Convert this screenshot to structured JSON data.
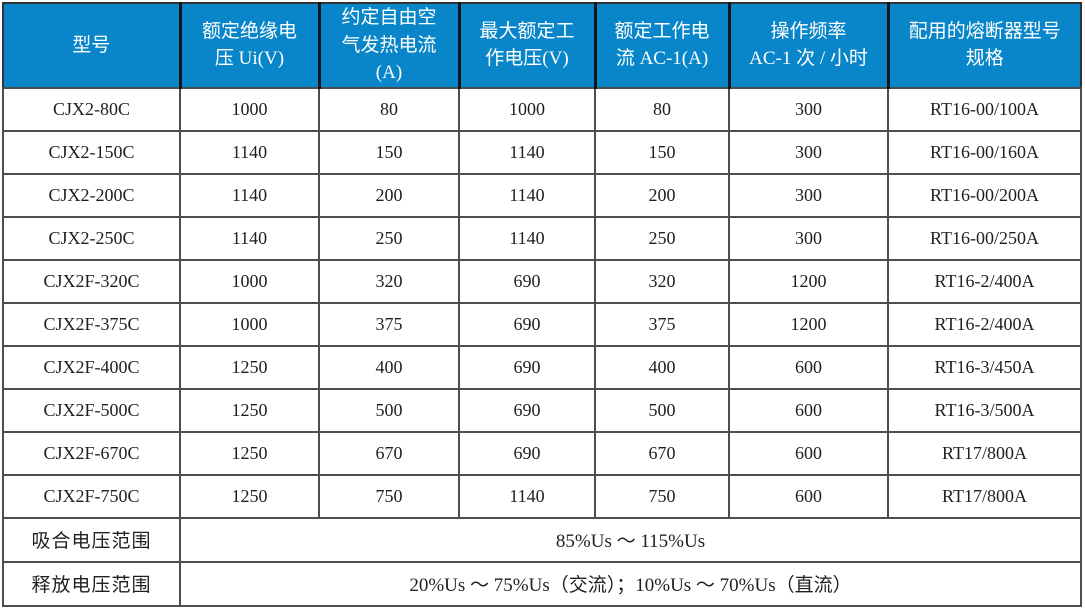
{
  "colors": {
    "header_bg": "#0886c9",
    "header_text": "#ffffff",
    "grid_border": "#4d4d4d",
    "header_divider": "#10161b",
    "body_text": "#1f1f1f"
  },
  "table": {
    "columns": [
      "型号",
      "额定绝缘电\n压 Ui(V)",
      "约定自由空\n气发热电流\n(A)",
      "最大额定工\n作电压(V)",
      "额定工作电\n流 AC-1(A)",
      "操作频率\nAC-1 次 / 小时",
      "配用的熔断器型号\n规格"
    ],
    "rows": [
      [
        "CJX2-80C",
        "1000",
        "80",
        "1000",
        "80",
        "300",
        "RT16-00/100A"
      ],
      [
        "CJX2-150C",
        "1140",
        "150",
        "1140",
        "150",
        "300",
        "RT16-00/160A"
      ],
      [
        "CJX2-200C",
        "1140",
        "200",
        "1140",
        "200",
        "300",
        "RT16-00/200A"
      ],
      [
        "CJX2-250C",
        "1140",
        "250",
        "1140",
        "250",
        "300",
        "RT16-00/250A"
      ],
      [
        "CJX2F-320C",
        "1000",
        "320",
        "690",
        "320",
        "1200",
        "RT16-2/400A"
      ],
      [
        "CJX2F-375C",
        "1000",
        "375",
        "690",
        "375",
        "1200",
        "RT16-2/400A"
      ],
      [
        "CJX2F-400C",
        "1250",
        "400",
        "690",
        "400",
        "600",
        "RT16-3/450A"
      ],
      [
        "CJX2F-500C",
        "1250",
        "500",
        "690",
        "500",
        "600",
        "RT16-3/500A"
      ],
      [
        "CJX2F-670C",
        "1250",
        "670",
        "690",
        "670",
        "600",
        "RT17/800A"
      ],
      [
        "CJX2F-750C",
        "1250",
        "750",
        "1140",
        "750",
        "600",
        "RT17/800A"
      ]
    ],
    "footer_rows": [
      {
        "label": "吸合电压范围",
        "value": "85%Us ～ 115%Us"
      },
      {
        "label": "释放电压范围",
        "value": "20%Us ～ 75%Us（交流）；10%Us ～ 70%Us（直流）"
      }
    ]
  }
}
